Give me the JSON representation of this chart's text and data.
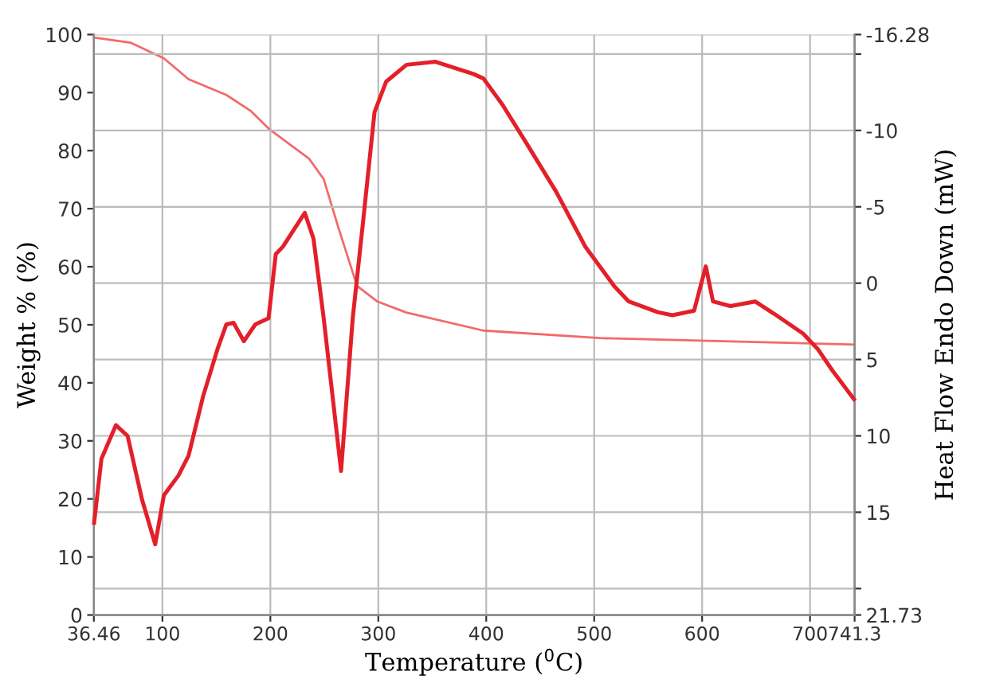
{
  "chart_data": {
    "type": "line",
    "xlabel": "Temperature ($^{0}$C)",
    "ylabel": "Weight % (%)",
    "y2label": "Heat Flow Endo Down (mW)",
    "xlim": [
      36.46,
      741.3
    ],
    "xticks": [
      36.46,
      100,
      200,
      300,
      400,
      500,
      600,
      700,
      741.3
    ],
    "ylim": [
      0,
      100
    ],
    "yticks": [
      0,
      10,
      20,
      30,
      40,
      50,
      60,
      70,
      80,
      90,
      100
    ],
    "y2lim": [
      21.73,
      -16.28
    ],
    "y2ticks": [
      -16.28,
      {
        "value": -15,
        "label": null
      },
      -10,
      -5,
      0,
      5,
      10,
      15,
      {
        "value": 20,
        "label": null
      },
      21.73
    ],
    "grid": true,
    "marker": "none",
    "line_style": "solid",
    "series": [
      {
        "color": "#f26a6a",
        "x": [
          36.46,
          70.4,
          101.3,
          124.2,
          159.2,
          182.1,
          199.6,
          235.9,
          249.4,
          262.9,
          280.3,
          299.2,
          326.1,
          397.4,
          505.1,
          612.8,
          741.3
        ],
        "values": [
          99.5,
          98.6,
          95.9,
          92.3,
          89.6,
          86.8,
          83.6,
          78.6,
          75.1,
          66.8,
          56.7,
          54.0,
          52.1,
          49.0,
          47.7,
          47.2,
          46.6
        ]
      },
      {
        "color": "#e3202a",
        "axis": "y2",
        "x": [
          36.7,
          43.5,
          56.9,
          67.7,
          81.2,
          93.3,
          101.3,
          114.8,
          124.2,
          137.7,
          151.1,
          159.2,
          165.9,
          175.4,
          186.1,
          198.3,
          205.0,
          211.7,
          231.9,
          240.0,
          249.4,
          265.5,
          276.3,
          285.7,
          296.5,
          307.3,
          326.1,
          353.0,
          388.0,
          397.4,
          414.9,
          437.8,
          464.7,
          491.7,
          518.6,
          532.0,
          558.9,
          572.4,
          592.6,
          603.4,
          610.1,
          626.2,
          649.1,
          666.6,
          693.5,
          707.0,
          720.5,
          740.7
        ],
        "values": [
          15.7,
          11.5,
          9.3,
          10.0,
          14.2,
          17.1,
          13.9,
          12.6,
          11.3,
          7.4,
          4.3,
          2.7,
          2.6,
          3.8,
          2.7,
          2.3,
          -1.9,
          -2.4,
          -4.6,
          -2.9,
          2.3,
          12.3,
          2.3,
          -3.9,
          -11.2,
          -13.2,
          -14.3,
          -14.5,
          -13.7,
          -13.4,
          -11.7,
          -9.1,
          -6.0,
          -2.4,
          0.2,
          1.2,
          1.9,
          2.1,
          1.8,
          -1.1,
          1.2,
          1.5,
          1.2,
          2.0,
          3.3,
          4.3,
          5.7,
          7.6
        ]
      }
    ]
  }
}
